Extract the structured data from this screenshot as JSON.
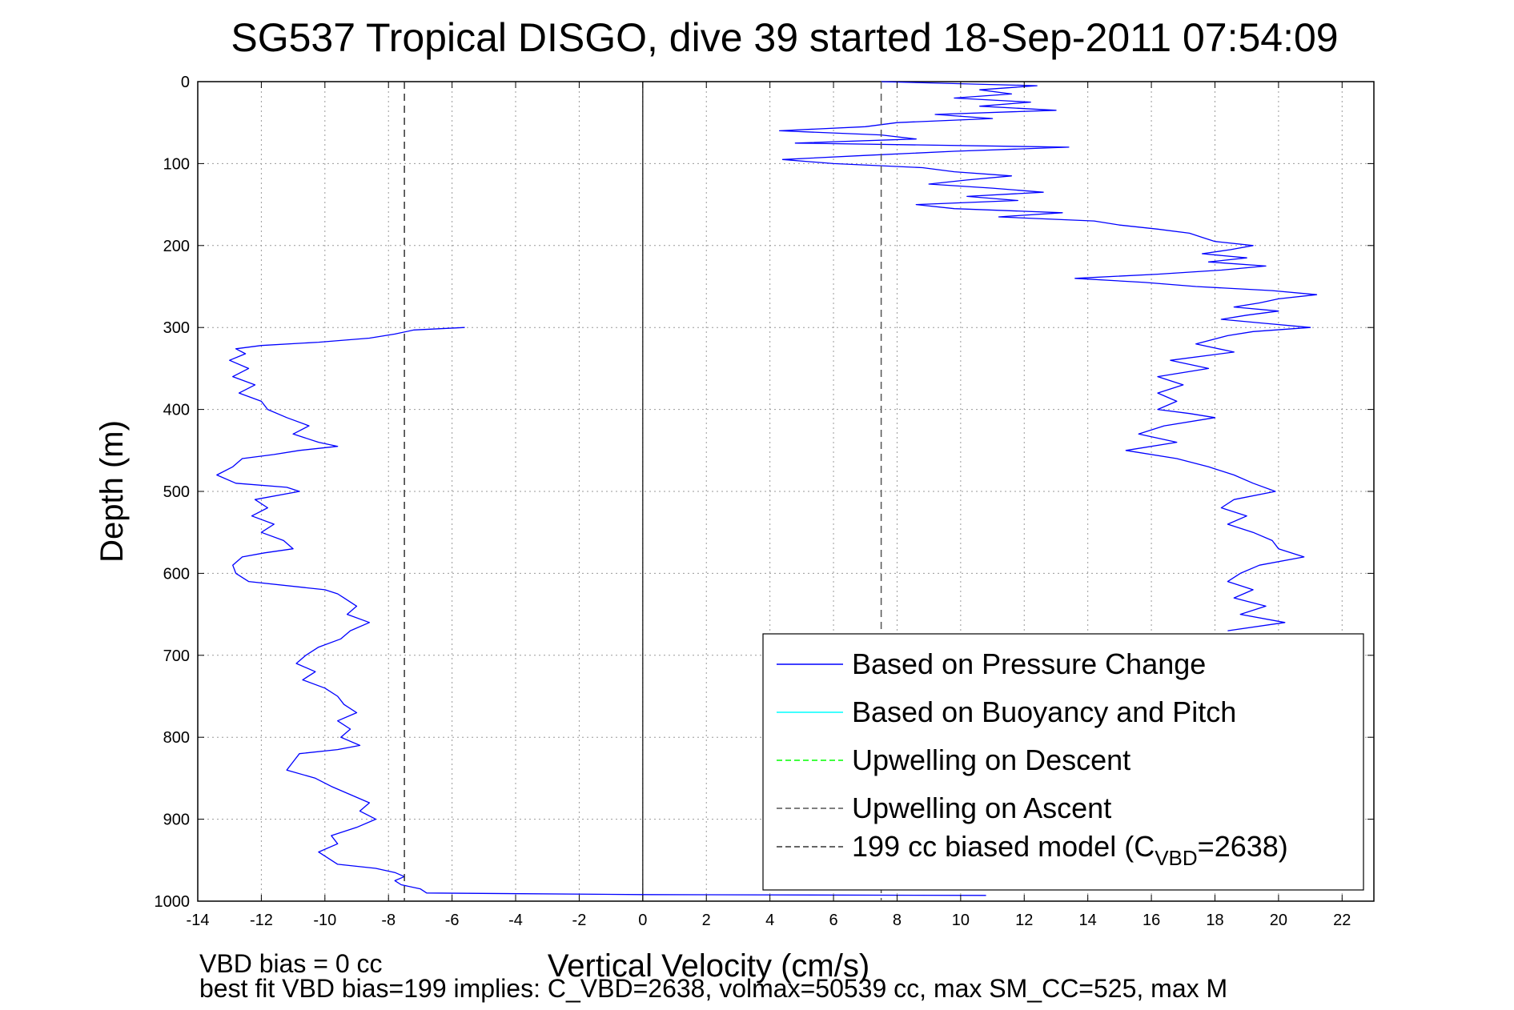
{
  "chart_data": {
    "type": "line",
    "title": "SG537 Tropical DISGO, dive 39 started 18-Sep-2011 07:54:09",
    "xlabel": "Vertical Velocity (cm/s)",
    "ylabel": "Depth (m)",
    "xlim": [
      -14,
      23
    ],
    "ylim": [
      0,
      1000
    ],
    "y_reversed": true,
    "grid": true,
    "legend_position": "bottom-right",
    "x_ticks": [
      -14,
      -12,
      -10,
      -8,
      -6,
      -4,
      -2,
      0,
      2,
      4,
      6,
      8,
      10,
      12,
      14,
      16,
      18,
      20,
      22
    ],
    "y_ticks": [
      0,
      100,
      200,
      300,
      400,
      500,
      600,
      700,
      800,
      900,
      1000
    ],
    "legend": [
      {
        "label": "Based on Pressure Change",
        "color": "#0000ff",
        "dash": "solid"
      },
      {
        "label": "Based on Buoyancy and Pitch",
        "color": "#00ffff",
        "dash": "solid"
      },
      {
        "label": "Upwelling on Descent",
        "color": "#00ff00",
        "dash": "dashed"
      },
      {
        "label": "Upwelling on Ascent",
        "color": "#555555",
        "dash": "dashed"
      },
      {
        "label_main": "199 cc biased model (C",
        "label_sub": "VBD",
        "label_end": "=2638)",
        "color": "#333333",
        "dash": "dashed"
      }
    ],
    "series": [
      {
        "name": "Based on Pressure Change",
        "segment": "descent",
        "color": "#0000ff",
        "depth": [
          300,
          303,
          308,
          313,
          318,
          322,
          326,
          332,
          340,
          350,
          360,
          370,
          380,
          390,
          400,
          410,
          420,
          430,
          440,
          445,
          450,
          455,
          460,
          470,
          480,
          490,
          495,
          500,
          510,
          520,
          530,
          540,
          550,
          560,
          570,
          575,
          580,
          590,
          600,
          610,
          620,
          625,
          630,
          640,
          650,
          660,
          670,
          680,
          690,
          700,
          710,
          720,
          730,
          740,
          750,
          760,
          770,
          780,
          790,
          800,
          810,
          815,
          820,
          830,
          840,
          850,
          860,
          870,
          880,
          890,
          900,
          910,
          920,
          930,
          940,
          950,
          955,
          960,
          965,
          970,
          975,
          980,
          985,
          990,
          992,
          993
        ],
        "velocity": [
          -5.6,
          -7.2,
          -7.8,
          -8.6,
          -10.2,
          -12.0,
          -12.8,
          -12.5,
          -13.0,
          -12.4,
          -12.9,
          -12.2,
          -12.7,
          -12.0,
          -11.8,
          -11.2,
          -10.5,
          -11.0,
          -10.2,
          -9.6,
          -10.8,
          -11.6,
          -12.6,
          -12.9,
          -13.4,
          -12.8,
          -11.2,
          -10.8,
          -12.2,
          -11.8,
          -12.3,
          -11.6,
          -12.0,
          -11.3,
          -11.0,
          -11.9,
          -12.6,
          -12.9,
          -12.8,
          -12.4,
          -10.0,
          -9.6,
          -9.4,
          -9.0,
          -9.3,
          -8.6,
          -9.2,
          -9.5,
          -10.2,
          -10.6,
          -10.9,
          -10.3,
          -10.7,
          -10.0,
          -9.6,
          -9.4,
          -9.0,
          -9.6,
          -9.2,
          -9.5,
          -8.9,
          -9.6,
          -10.8,
          -11.0,
          -11.2,
          -10.3,
          -9.8,
          -9.2,
          -8.6,
          -8.9,
          -8.4,
          -9.0,
          -9.8,
          -9.6,
          -10.2,
          -9.8,
          -9.6,
          -8.4,
          -7.8,
          -7.5,
          -7.8,
          -7.6,
          -7.0,
          -6.8,
          0,
          10.8
        ]
      },
      {
        "name": "Based on Pressure Change",
        "segment": "ascent",
        "color": "#0000ff",
        "depth": [
          0,
          5,
          10,
          15,
          20,
          25,
          30,
          35,
          40,
          45,
          50,
          55,
          60,
          65,
          70,
          75,
          80,
          85,
          90,
          95,
          100,
          105,
          110,
          115,
          120,
          125,
          130,
          135,
          140,
          145,
          150,
          155,
          160,
          165,
          170,
          175,
          180,
          185,
          190,
          195,
          200,
          205,
          210,
          215,
          220,
          225,
          230,
          235,
          240,
          245,
          250,
          255,
          260,
          265,
          270,
          275,
          280,
          285,
          290,
          295,
          300,
          305,
          310,
          320,
          330,
          340,
          350,
          360,
          370,
          380,
          390,
          400,
          405,
          410,
          420,
          430,
          440,
          450,
          460,
          470,
          480,
          490,
          500,
          510,
          520,
          530,
          540,
          550,
          560,
          570,
          580,
          590,
          600,
          610,
          620,
          630,
          640,
          650,
          660,
          670
        ],
        "velocity": [
          7.5,
          12.4,
          10.6,
          11.6,
          9.8,
          12.2,
          10.6,
          13.0,
          9.2,
          11.0,
          8.0,
          7.0,
          4.3,
          7.5,
          8.6,
          4.8,
          13.4,
          9.8,
          7.0,
          4.4,
          6.0,
          8.8,
          9.8,
          11.6,
          10.2,
          9.0,
          11.0,
          12.6,
          10.2,
          11.8,
          8.6,
          9.8,
          13.2,
          11.2,
          14.2,
          15.0,
          16.2,
          17.2,
          17.6,
          18.0,
          19.2,
          18.5,
          17.6,
          19.0,
          17.8,
          19.6,
          18.2,
          16.2,
          13.6,
          15.8,
          17.4,
          19.8,
          21.2,
          20.0,
          19.4,
          18.6,
          20.0,
          19.0,
          18.2,
          19.6,
          21.0,
          19.2,
          18.4,
          17.4,
          18.6,
          16.6,
          17.8,
          16.2,
          17.0,
          16.2,
          16.8,
          16.2,
          17.2,
          18.0,
          16.4,
          15.6,
          16.8,
          15.2,
          16.8,
          17.8,
          18.6,
          19.2,
          19.9,
          18.6,
          18.2,
          19.0,
          18.4,
          19.2,
          19.8,
          20.0,
          20.8,
          19.4,
          18.8,
          18.4,
          19.2,
          18.6,
          19.6,
          18.8,
          20.2,
          18.4
        ]
      },
      {
        "name": "Upwelling on Ascent",
        "color": "#555555",
        "depth": [
          0,
          1000
        ],
        "velocity": [
          7.5,
          7.5
        ]
      },
      {
        "name": "199 cc biased model (C VBD=2638)",
        "color": "#333333",
        "depth": [
          0,
          1000
        ],
        "velocity": [
          -7.5,
          -7.5
        ]
      }
    ]
  },
  "footer": {
    "line1": "VBD bias = 0 cc",
    "line2": "best fit VBD bias=199 implies: C_VBD=2638, volmax=50539 cc, max SM_CC=525, max M"
  }
}
